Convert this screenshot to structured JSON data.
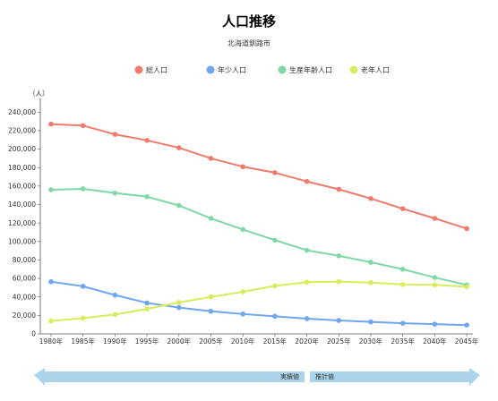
{
  "chart_data": {
    "type": "line",
    "title": "人口推移",
    "subtitle": "北海道釧路市",
    "ylabel": "（人）",
    "ylim": [
      0,
      250000
    ],
    "yticks": [
      0,
      20000,
      40000,
      60000,
      80000,
      100000,
      120000,
      140000,
      160000,
      180000,
      200000,
      220000,
      240000
    ],
    "ytick_labels": [
      "0",
      "20,000",
      "40,000",
      "60,000",
      "80,000",
      "100,000",
      "120,000",
      "140,000",
      "160,000",
      "180,000",
      "200,000",
      "220,000",
      "240,000"
    ],
    "categories": [
      "1980年",
      "1985年",
      "1990年",
      "1995年",
      "2000年",
      "2005年",
      "2010年",
      "2015年",
      "2020年",
      "2025年",
      "2030年",
      "2035年",
      "2040年",
      "2045年"
    ],
    "legend_position": "top",
    "grid": false,
    "series": [
      {
        "name": "総人口",
        "color": "#f07a6b",
        "values": [
          227000,
          225500,
          216000,
          209500,
          201500,
          190000,
          181000,
          174500,
          165000,
          156500,
          146500,
          135500,
          125000,
          114000
        ]
      },
      {
        "name": "年少人口",
        "color": "#6ea6f0",
        "values": [
          56500,
          51500,
          42000,
          33500,
          28500,
          24500,
          21500,
          19000,
          16500,
          14500,
          13000,
          11500,
          10500,
          9500
        ]
      },
      {
        "name": "生産年齢人口",
        "color": "#7fd9a6",
        "values": [
          156000,
          157000,
          152500,
          148500,
          139000,
          125000,
          113000,
          101500,
          90500,
          84500,
          77500,
          70000,
          61000,
          53000
        ]
      },
      {
        "name": "老年人口",
        "color": "#d9ec5c",
        "values": [
          14000,
          17000,
          21000,
          27000,
          34000,
          40000,
          45500,
          52000,
          56000,
          56500,
          55500,
          53500,
          53000,
          51000
        ]
      }
    ],
    "annotations": {
      "actual_label": "実績値",
      "projected_label": "推計値",
      "band_color": "#a9d4ea"
    }
  }
}
